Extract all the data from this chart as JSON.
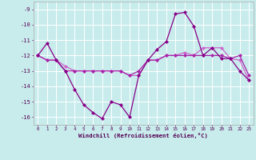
{
  "xlabel": "Windchill (Refroidissement éolien,°C)",
  "background_color": "#c8ecec",
  "grid_color": "#ffffff",
  "x_values": [
    0,
    1,
    2,
    3,
    4,
    5,
    6,
    7,
    8,
    9,
    10,
    11,
    12,
    13,
    14,
    15,
    16,
    17,
    18,
    19,
    20,
    21,
    22,
    23
  ],
  "line1": [
    -12.0,
    -11.2,
    -12.3,
    -13.0,
    -14.2,
    -15.2,
    -15.7,
    -16.1,
    -15.0,
    -15.2,
    -16.0,
    -13.3,
    -12.3,
    -11.6,
    -11.1,
    -9.3,
    -9.2,
    -10.1,
    -12.0,
    -11.5,
    -12.2,
    -12.2,
    -13.0,
    -13.6
  ],
  "line2": [
    -12.0,
    -12.3,
    -12.3,
    -13.0,
    -13.0,
    -13.0,
    -13.0,
    -13.0,
    -13.0,
    -13.0,
    -13.3,
    -13.0,
    -12.3,
    -12.3,
    -12.0,
    -12.0,
    -12.0,
    -12.0,
    -12.0,
    -12.0,
    -12.0,
    -12.2,
    -12.0,
    -13.3
  ],
  "line3": [
    -12.0,
    -12.3,
    -12.3,
    -12.7,
    -13.0,
    -13.0,
    -13.0,
    -13.0,
    -13.0,
    -13.0,
    -13.3,
    -13.3,
    -12.3,
    -12.3,
    -12.0,
    -12.0,
    -11.8,
    -12.0,
    -11.5,
    -11.5,
    -11.5,
    -12.2,
    -12.3,
    -13.6
  ],
  "ylim": [
    -16.5,
    -8.5
  ],
  "xlim": [
    -0.5,
    23.5
  ],
  "yticks": [
    -16,
    -15,
    -14,
    -13,
    -12,
    -11,
    -10,
    -9
  ],
  "xticks": [
    0,
    1,
    2,
    3,
    4,
    5,
    6,
    7,
    8,
    9,
    10,
    11,
    12,
    13,
    14,
    15,
    16,
    17,
    18,
    19,
    20,
    21,
    22,
    23
  ],
  "line_color1": "#880088",
  "line_color2": "#aa22aa",
  "line_color3": "#cc66cc",
  "marker": "D",
  "markersize": 2.5,
  "linewidth": 0.9
}
